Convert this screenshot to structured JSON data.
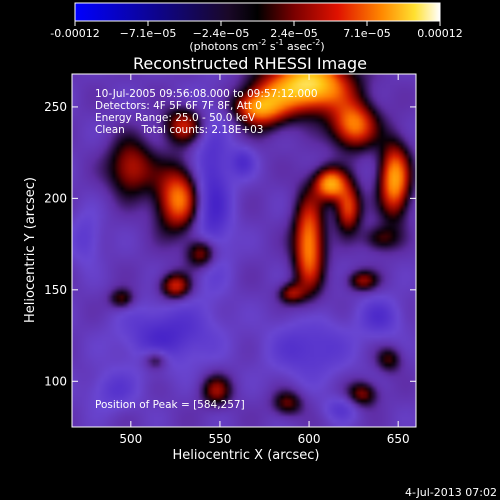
{
  "chart_data": {
    "type": "heatmap",
    "title": "Reconstructed RHESSI Image",
    "xlabel": "Heliocentric X (arcsec)",
    "ylabel": "Heliocentric Y (arcsec)",
    "xlim": [
      467,
      660
    ],
    "ylim": [
      75,
      268
    ],
    "x_ticks": [
      500,
      550,
      600,
      650
    ],
    "y_ticks": [
      100,
      150,
      200,
      250
    ],
    "colorbar": {
      "ticks": [
        "-0.00012",
        "−7.1e−05",
        "−2.4e−05",
        "2.4e−05",
        "7.1e−05",
        "0.00012"
      ],
      "unit_main": "(photons cm",
      "unit_e1": "-2",
      "unit_mid": " s",
      "unit_e2": "-1",
      "unit_end": " asec",
      "unit_e3": "-2",
      "unit_close": ")",
      "range": [
        -0.00012,
        0.00012
      ]
    },
    "info_lines": [
      "10-Jul-2005 09:56:08.000 to 09:57:12.000",
      "Detectors: 4F 5F 6F 7F 8F, Att 0",
      "Energy Range: 25.0 - 50.0 keV",
      "Clean     Total counts: 2.18E+03"
    ],
    "peak_label": "Position of Peak = [584,257]",
    "peak_position": [
      584,
      257
    ],
    "timestamp": "4-Jul-2013 07:02",
    "blobs": [
      {
        "x": 600,
        "y": 262,
        "sx": 16,
        "sy": 10,
        "v": 1.15
      },
      {
        "x": 575,
        "y": 250,
        "sx": 10,
        "sy": 9,
        "v": 0.6
      },
      {
        "x": 625,
        "y": 240,
        "sx": 9,
        "sy": 9,
        "v": 0.8
      },
      {
        "x": 648,
        "y": 210,
        "sx": 6,
        "sy": 14,
        "v": 0.9
      },
      {
        "x": 612,
        "y": 208,
        "sx": 6,
        "sy": 6,
        "v": 0.9
      },
      {
        "x": 622,
        "y": 195,
        "sx": 5,
        "sy": 9,
        "v": 0.7
      },
      {
        "x": 600,
        "y": 175,
        "sx": 6,
        "sy": 18,
        "v": 0.85
      },
      {
        "x": 640,
        "y": 178,
        "sx": 7,
        "sy": 5,
        "v": 0.35
      },
      {
        "x": 630,
        "y": 155,
        "sx": 6,
        "sy": 4,
        "v": 0.45
      },
      {
        "x": 590,
        "y": 148,
        "sx": 5,
        "sy": 4,
        "v": 0.45
      },
      {
        "x": 527,
        "y": 200,
        "sx": 9,
        "sy": 13,
        "v": 0.8
      },
      {
        "x": 500,
        "y": 217,
        "sx": 9,
        "sy": 11,
        "v": 0.55
      },
      {
        "x": 530,
        "y": 240,
        "sx": 8,
        "sy": 7,
        "v": 0.55
      },
      {
        "x": 540,
        "y": 170,
        "sx": 6,
        "sy": 6,
        "v": 0.6
      },
      {
        "x": 525,
        "y": 152,
        "sx": 6,
        "sy": 5,
        "v": 0.6
      },
      {
        "x": 495,
        "y": 145,
        "sx": 5,
        "sy": 4,
        "v": 0.4
      },
      {
        "x": 514,
        "y": 112,
        "sx": 5,
        "sy": 4,
        "v": 0.4
      },
      {
        "x": 548,
        "y": 95,
        "sx": 6,
        "sy": 6,
        "v": 0.45
      },
      {
        "x": 588,
        "y": 88,
        "sx": 6,
        "sy": 5,
        "v": 0.4
      },
      {
        "x": 630,
        "y": 93,
        "sx": 6,
        "sy": 5,
        "v": 0.45
      },
      {
        "x": 645,
        "y": 112,
        "sx": 5,
        "sy": 5,
        "v": 0.35
      },
      {
        "x": 568,
        "y": 250,
        "sx": 8,
        "sy": 5,
        "v": 0.35
      },
      {
        "x": 545,
        "y": 200,
        "sx": 8,
        "sy": 30,
        "v": -0.45
      },
      {
        "x": 520,
        "y": 125,
        "sx": 18,
        "sy": 12,
        "v": -0.38
      },
      {
        "x": 475,
        "y": 178,
        "sx": 6,
        "sy": 10,
        "v": -0.25
      },
      {
        "x": 600,
        "y": 118,
        "sx": 16,
        "sy": 12,
        "v": -0.32
      },
      {
        "x": 640,
        "y": 135,
        "sx": 9,
        "sy": 8,
        "v": -0.3
      },
      {
        "x": 563,
        "y": 220,
        "sx": 5,
        "sy": 6,
        "v": -0.3
      },
      {
        "x": 490,
        "y": 95,
        "sx": 10,
        "sy": 8,
        "v": -0.25
      },
      {
        "x": 618,
        "y": 85,
        "sx": 7,
        "sy": 5,
        "v": -0.25
      }
    ]
  }
}
